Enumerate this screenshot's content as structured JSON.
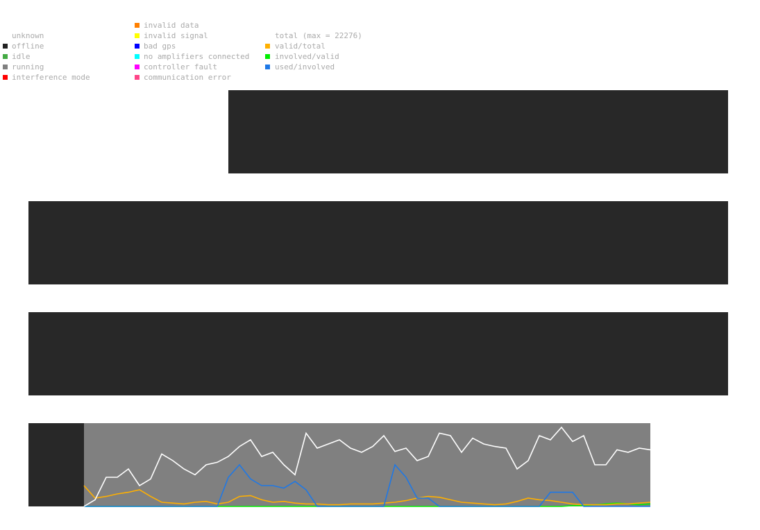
{
  "legend": {
    "status": [
      {
        "label": "unknown",
        "color": "#ffffff"
      },
      {
        "label": "offline",
        "color": "#222222"
      },
      {
        "label": "idle",
        "color": "#44aa44"
      },
      {
        "label": "running",
        "color": "#808080"
      },
      {
        "label": "interference mode",
        "color": "#ff0000"
      },
      {
        "label": "invalid data",
        "color": "#ff8000"
      },
      {
        "label": "invalid signal",
        "color": "#ffff00"
      },
      {
        "label": "bad gps",
        "color": "#0000ff"
      },
      {
        "label": "no amplifiers connected",
        "color": "#00ffff"
      },
      {
        "label": "controller fault",
        "color": "#ff00ff"
      },
      {
        "label": "communication error",
        "color": "#ff4488"
      }
    ]
  },
  "chart_data": {
    "type": "line",
    "ylim": [
      0,
      1
    ],
    "series": [
      {
        "name": "total (max = 22276)",
        "color": "#ffffff",
        "values": [
          0.0,
          0.08,
          0.35,
          0.35,
          0.45,
          0.25,
          0.33,
          0.63,
          0.55,
          0.45,
          0.38,
          0.5,
          0.53,
          0.6,
          0.72,
          0.8,
          0.6,
          0.65,
          0.5,
          0.38,
          0.88,
          0.7,
          0.75,
          0.8,
          0.7,
          0.65,
          0.72,
          0.85,
          0.66,
          0.7,
          0.55,
          0.6,
          0.88,
          0.85,
          0.65,
          0.82,
          0.75,
          0.72,
          0.7,
          0.45,
          0.55,
          0.85,
          0.8,
          0.95,
          0.78,
          0.85,
          0.5,
          0.5,
          0.68,
          0.65,
          0.7,
          0.68
        ]
      },
      {
        "name": "valid/total",
        "color": "#ffb000",
        "values": [
          0.25,
          0.1,
          0.12,
          0.15,
          0.17,
          0.2,
          0.12,
          0.05,
          0.04,
          0.03,
          0.05,
          0.06,
          0.03,
          0.05,
          0.12,
          0.13,
          0.08,
          0.05,
          0.06,
          0.04,
          0.03,
          0.03,
          0.02,
          0.02,
          0.03,
          0.03,
          0.03,
          0.04,
          0.05,
          0.07,
          0.1,
          0.12,
          0.11,
          0.08,
          0.05,
          0.04,
          0.03,
          0.02,
          0.03,
          0.06,
          0.1,
          0.08,
          0.07,
          0.05,
          0.03,
          0.02,
          0.02,
          0.02,
          0.03,
          0.03,
          0.04,
          0.05
        ]
      },
      {
        "name": "involved/valid",
        "color": "#00ee00",
        "values": [
          0,
          0,
          0,
          0,
          0,
          0,
          0,
          0,
          0,
          0,
          0,
          0,
          0,
          0,
          0,
          0,
          0,
          0,
          0,
          0,
          0,
          0,
          0,
          0,
          0,
          0,
          0,
          0,
          0,
          0,
          0,
          0,
          0,
          0,
          0,
          0,
          0,
          0,
          0,
          0,
          0,
          0,
          0,
          0,
          0.01,
          0.01,
          0.02,
          0.03,
          0.04,
          0.03,
          0.02,
          0.03
        ]
      },
      {
        "name": "used/involved",
        "color": "#1e78e6",
        "values": [
          0,
          0,
          0,
          0,
          0,
          0,
          0,
          0,
          0,
          0,
          0,
          0,
          0,
          0.35,
          0.5,
          0.33,
          0.25,
          0.25,
          0.22,
          0.3,
          0.2,
          0,
          0,
          0,
          0,
          0,
          0,
          0,
          0.5,
          0.35,
          0.1,
          0.1,
          0,
          0,
          0,
          0,
          0,
          0,
          0,
          0,
          0,
          0,
          0.17,
          0.17,
          0.17,
          0,
          0,
          0,
          0,
          0,
          0,
          0
        ]
      }
    ]
  }
}
